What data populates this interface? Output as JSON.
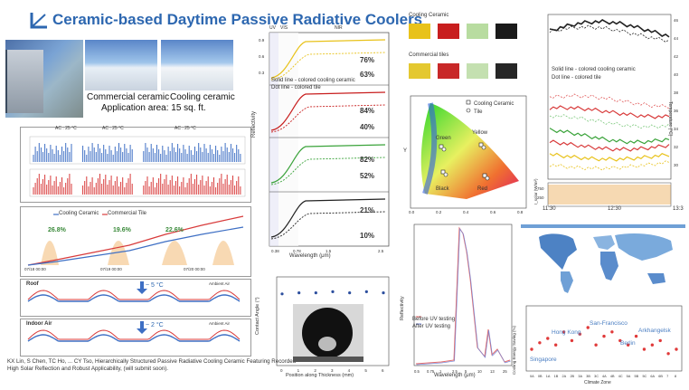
{
  "title": "Ceramic-based Daytime Passive Radiative Coolers",
  "photos": {
    "commercial_label": "Commercial ceramic",
    "cooling_label": "Cooling ceramic",
    "area_label": "Application area: 15 sq. ft."
  },
  "ac_labels": [
    "AC : 25 °C",
    "AC : 25 °C",
    "AC : 25 °C"
  ],
  "electricity_chart": {
    "legend": [
      "Cooling Ceramic",
      "Commercial Tile"
    ],
    "ylabel": "Electricity usage (kWh)",
    "y2label": "Solar intensity (W/m²)",
    "savings": [
      "26.8%",
      "19.6%",
      "22.6%"
    ],
    "xticks": [
      "07/18 00:00",
      "07/19 00:00",
      "07/20 00:00"
    ]
  },
  "roof_panel": {
    "label": "Roof",
    "delta": "~ 5 °C",
    "xlabel": "Ambient Air"
  },
  "indoor_panel": {
    "label": "Indoor Air",
    "delta": "~ 2 °C",
    "xlabel": "Ambient Air"
  },
  "reference": "KX Lin, S Chen, TC Ho, ... CY Tso, Hierarchically Structured Passive Radiative Cooling Ceramic Featuring Recorded High Solar Reflection and Robust Applicability, (will submit soon).",
  "reflectivity_chart": {
    "regions": [
      "UV",
      "VIS",
      "NIR"
    ],
    "ylabel": "Reflectivity",
    "xlabel": "Wavelength (μm)",
    "xticks": [
      "0.38",
      "0.78",
      "1.5",
      "2.5"
    ],
    "legend_text": [
      "Solid line - colored cooling ceramic",
      "Dot line - colored tile"
    ],
    "percentages": [
      "76%",
      "63%",
      "84%",
      "40%",
      "82%",
      "52%",
      "21%",
      "10%"
    ],
    "yticks": [
      "0.9",
      "0.6",
      "0.3"
    ]
  },
  "swatches": {
    "cooling_label": "Cooling Ceramic",
    "commercial_label": "Commercial tiles",
    "cooling_colors": [
      "#e8c21a",
      "#c81e1e",
      "#b8dca0",
      "#1a1a1a"
    ],
    "commercial_colors": [
      "#e4c830",
      "#c82828",
      "#c4e0b0",
      "#262626"
    ]
  },
  "cie_chart": {
    "legend": [
      "Cooling Ceramic",
      "Tile"
    ],
    "points": [
      "Green",
      "Yellow",
      "Black",
      "Red"
    ],
    "ylabel": "Y",
    "xticks": [
      "0.0",
      "0.2",
      "0.4",
      "0.6",
      "0.8"
    ]
  },
  "contact_chart": {
    "ylabel": "Contact Angle (°)",
    "xlabel": "Position along Thickness (mm)",
    "xticks": [
      "0",
      "1",
      "2",
      "3",
      "4",
      "5",
      "6"
    ],
    "values": [
      151,
      152,
      152,
      153,
      152,
      153,
      152
    ]
  },
  "uv_chart": {
    "ylabel": "Reflectivity",
    "xlabel": "Wavelength (μm)",
    "xticks": [
      "0.5",
      "0.75",
      "1",
      "2.5",
      "5",
      "10",
      "13",
      "25"
    ],
    "legend": [
      "Before UV testing",
      "After UV testing"
    ]
  },
  "temp_chart": {
    "ylabel": "Temperature (°C)",
    "yticks": [
      "46",
      "44",
      "42",
      "40",
      "38",
      "36",
      "34",
      "32",
      "30"
    ],
    "legend_text": [
      "Solid line - colored cooling ceramic",
      "Dot line - colored tile"
    ],
    "xticks": [
      "11:30",
      "12:30",
      "13:3"
    ],
    "solar_label": "I_solar (W/m²)",
    "solar_ticks": [
      "750",
      "250"
    ]
  },
  "energy_chart": {
    "ylabel": "Cooling Energy Saving (%)",
    "xlabel": "Climate Zone",
    "cities": [
      "Singapore",
      "Hong Kong",
      "San-Francisco",
      "Berlin",
      "Arkhangelsk"
    ],
    "xticks": [
      "0A",
      "0B",
      "1A",
      "1B",
      "2A",
      "2B",
      "3A",
      "3B",
      "3C",
      "4A",
      "4B",
      "4C",
      "5A",
      "5B",
      "5C",
      "6A",
      "6B",
      "7",
      "8"
    ],
    "values": [
      20,
      23,
      25,
      22,
      28,
      24,
      27,
      30,
      22,
      26,
      28,
      24,
      22,
      26,
      20,
      22,
      24,
      18,
      20
    ]
  }
}
